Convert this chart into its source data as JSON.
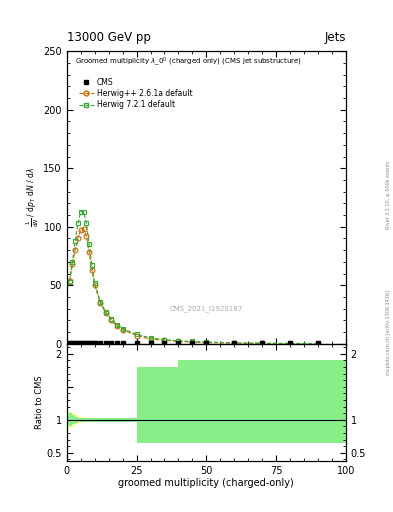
{
  "title_left": "13000 GeV pp",
  "title_right": "Jets",
  "xlabel": "groomed multiplicity (charged-only)",
  "ylabel_main_lines": [
    "mathrm d^2N",
    "mathrm d p_T mathrm d lambda"
  ],
  "ylabel_ratio": "Ratio to CMS",
  "watermark": "CMS_2021_I1920187",
  "rivet_label": "Rivet 3.1.10, ≥ 500k events",
  "mcplots_label": "mcplots.cern.ch [arXiv:1306.3436]",
  "xlim": [
    0,
    100
  ],
  "ylim_main": [
    0,
    250
  ],
  "ylim_ratio": [
    0.38,
    2.15
  ],
  "herwig_pp_x": [
    1,
    2,
    3,
    4,
    5,
    6,
    7,
    8,
    9,
    10,
    12,
    14,
    16,
    18,
    20,
    25,
    30,
    35,
    40,
    45,
    50,
    60,
    70,
    80,
    90
  ],
  "herwig_pp_y": [
    54,
    68,
    80,
    90,
    97,
    98,
    92,
    78,
    63,
    50,
    35,
    26,
    20,
    15,
    12,
    7,
    4,
    3,
    2,
    1.5,
    1,
    0.5,
    0.3,
    0.2,
    0.1
  ],
  "herwig7_x": [
    1,
    2,
    3,
    4,
    5,
    6,
    7,
    8,
    9,
    10,
    12,
    14,
    16,
    18,
    20,
    25,
    30,
    35,
    40,
    45,
    50,
    60,
    70,
    80,
    90
  ],
  "herwig7_y": [
    53,
    70,
    88,
    103,
    113,
    113,
    103,
    85,
    67,
    52,
    36,
    27,
    21,
    16,
    13,
    8,
    5,
    3.5,
    2.5,
    2,
    1.5,
    0.8,
    0.5,
    0.3,
    0.2
  ],
  "color_herwig_pp": "#cc6600",
  "color_herwig7": "#33aa33",
  "color_yellow": "#ffff88",
  "color_green": "#88ee88",
  "bg_color": "#ffffff",
  "yticks_main": [
    0,
    50,
    100,
    150,
    200,
    250
  ],
  "xticks": [
    0,
    25,
    50,
    75,
    100
  ],
  "ratio_yellow_edges": [
    0,
    1,
    2,
    3,
    4,
    5,
    6,
    7,
    8,
    9,
    10,
    15,
    20,
    25,
    30,
    50,
    100
  ],
  "ratio_yellow_lo": [
    0.88,
    0.88,
    0.9,
    0.93,
    0.95,
    0.96,
    0.97,
    0.97,
    0.97,
    0.97,
    0.97,
    0.97,
    0.97,
    0.97,
    0.97,
    0.97,
    0.97
  ],
  "ratio_yellow_hi": [
    1.12,
    1.12,
    1.1,
    1.07,
    1.05,
    1.04,
    1.03,
    1.03,
    1.03,
    1.03,
    1.03,
    1.03,
    1.03,
    1.03,
    1.03,
    1.03,
    1.03
  ],
  "ratio_green_edges": [
    0,
    1,
    2,
    3,
    4,
    5,
    7,
    10,
    20,
    25,
    30,
    40,
    50,
    100
  ],
  "ratio_green_lo": [
    0.9,
    0.9,
    0.93,
    0.95,
    0.97,
    0.97,
    0.97,
    0.97,
    0.97,
    0.65,
    0.65,
    0.65,
    0.65,
    0.65
  ],
  "ratio_green_hi": [
    1.1,
    1.1,
    1.07,
    1.05,
    1.03,
    1.03,
    1.03,
    1.03,
    1.03,
    1.8,
    1.8,
    1.9,
    1.9,
    1.9
  ]
}
